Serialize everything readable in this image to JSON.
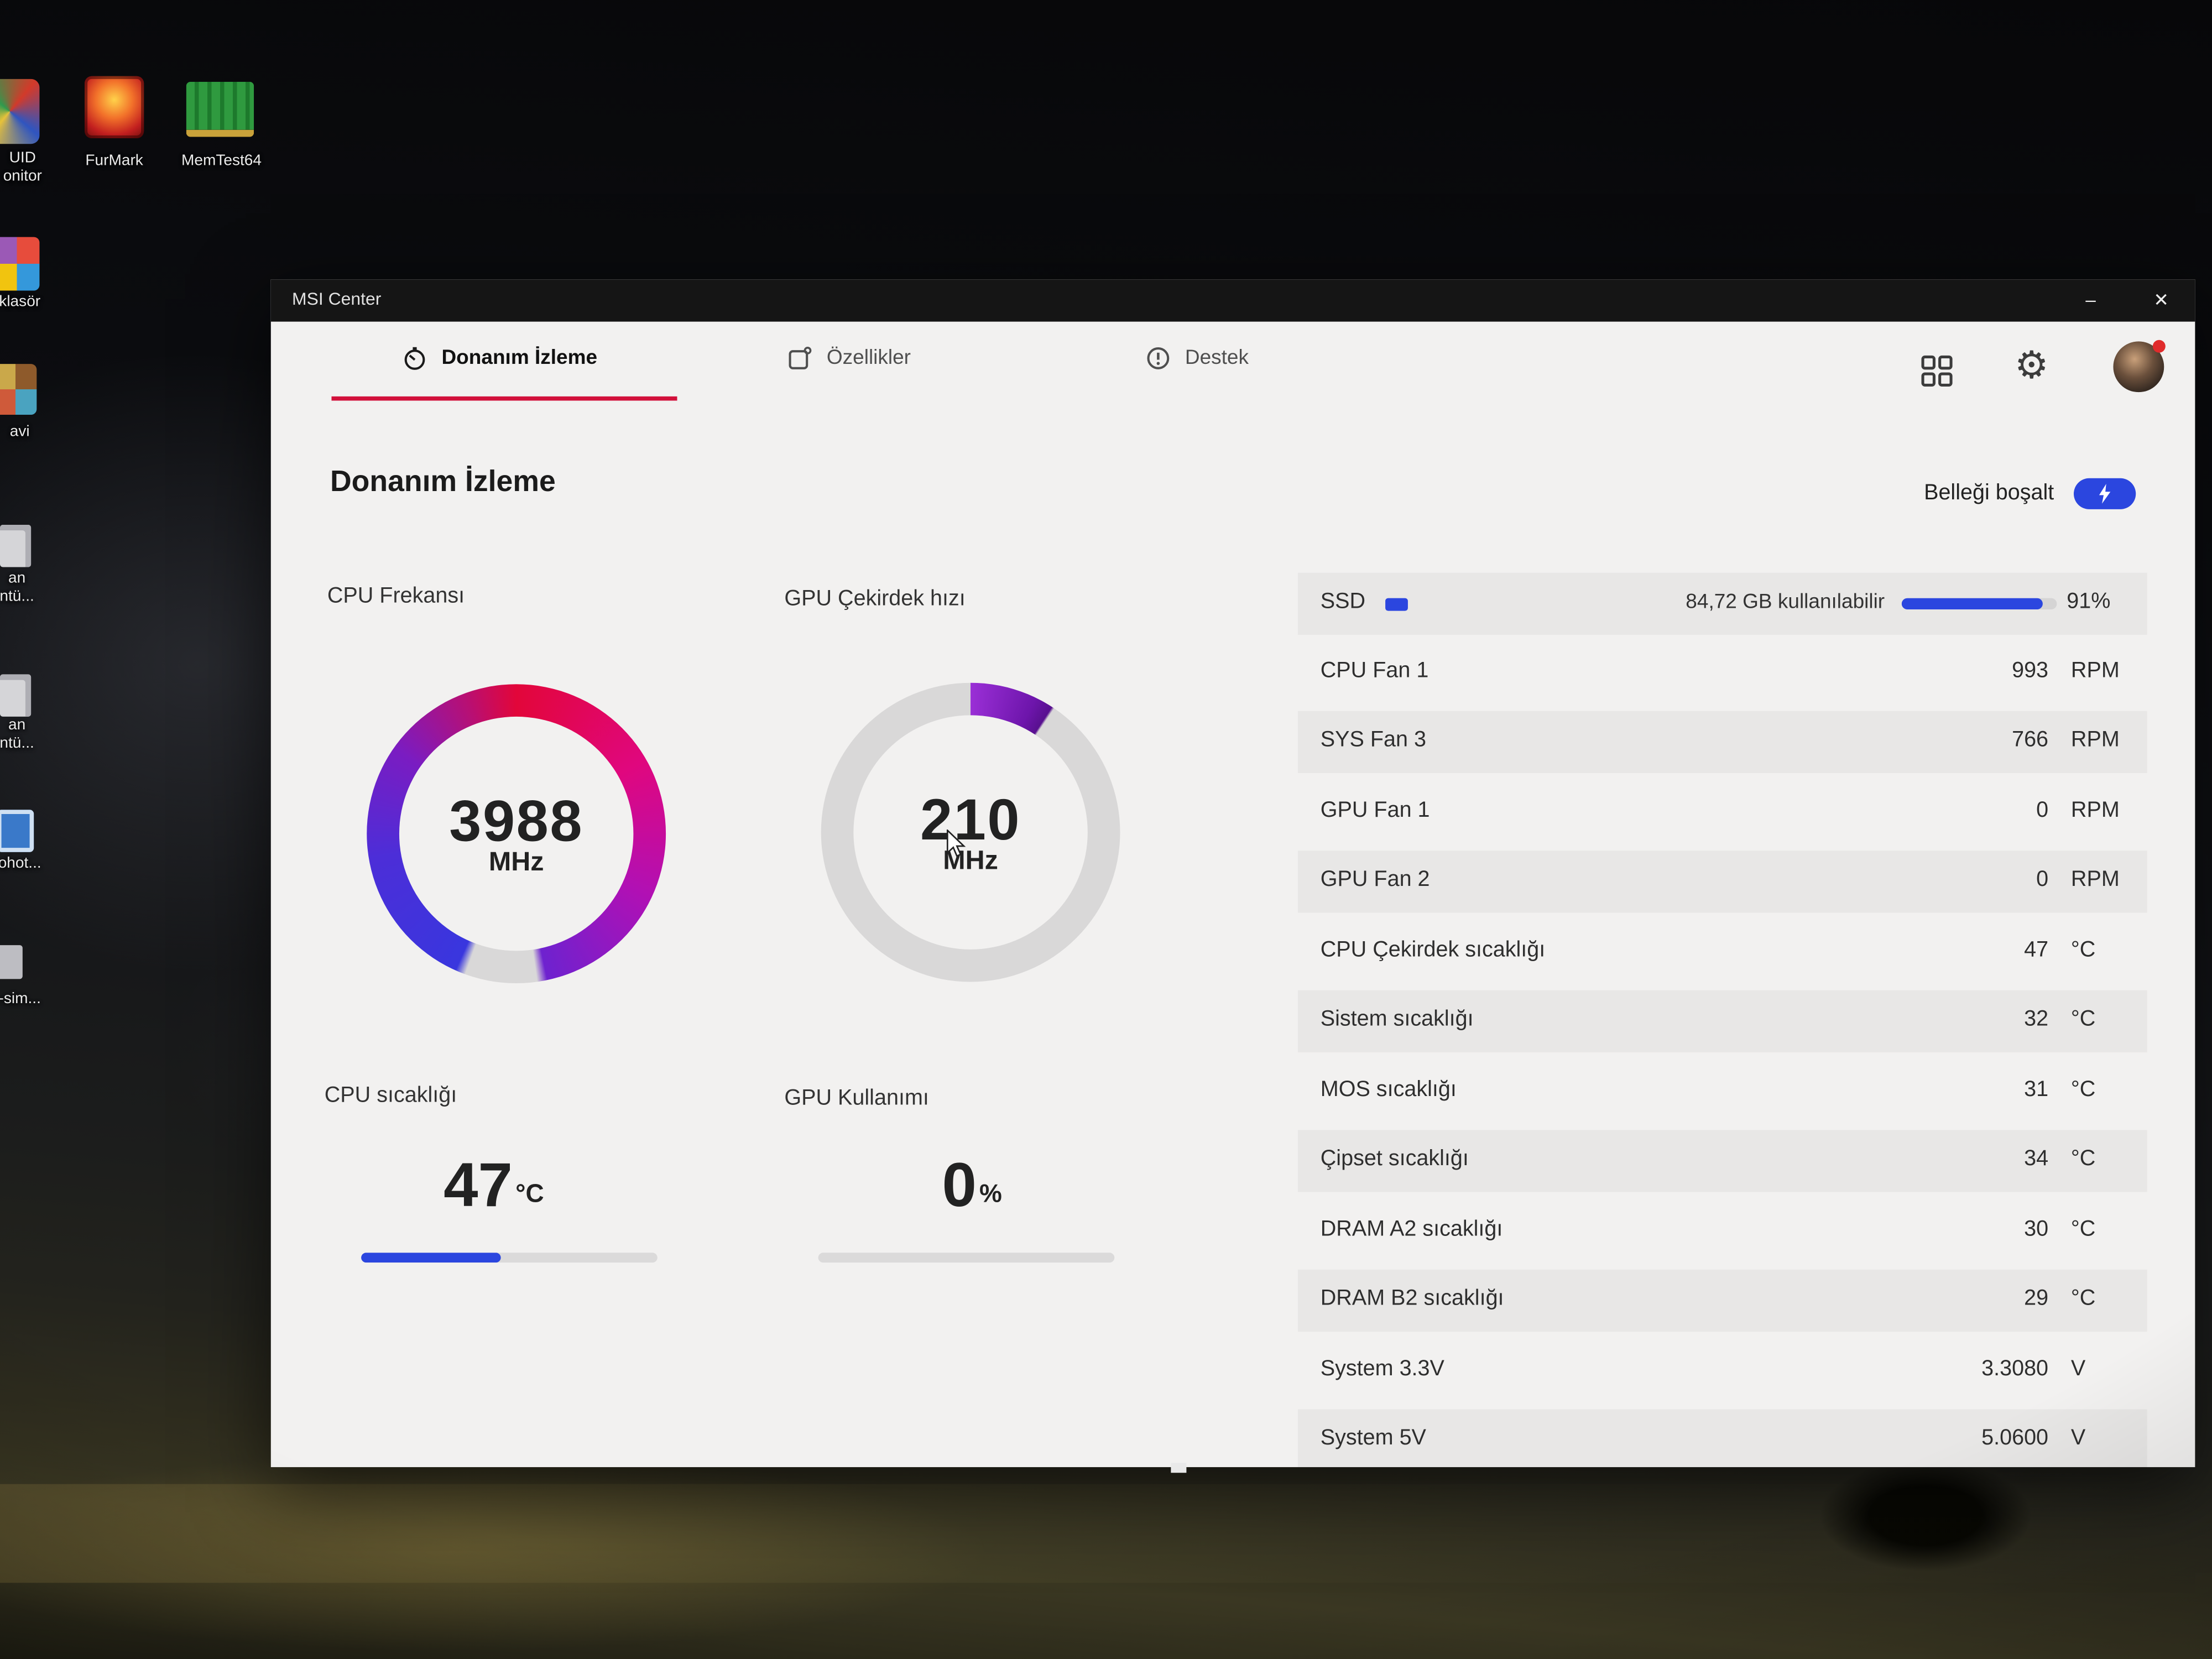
{
  "colors": {
    "accent_red": "#d2103a",
    "accent_blue": "#2b46df",
    "gauge_purple": "#7d1ec8",
    "window_bg": "#f2f1f0",
    "titlebar_bg": "#151515",
    "row_gray": "#e8e7e6"
  },
  "desktop": {
    "icons": [
      {
        "id": "cpuid-monitor",
        "line1": "UID",
        "line2": "onitor"
      },
      {
        "id": "furmark",
        "line1": "FurMark",
        "line2": ""
      },
      {
        "id": "memtest64",
        "line1": "MemTest64",
        "line2": ""
      },
      {
        "id": "folder-klasor",
        "line1": "klasör",
        "line2": ""
      },
      {
        "id": "folder-avi",
        "line1": "avi",
        "line2": ""
      },
      {
        "id": "file-1",
        "line1": "an",
        "line2": "ntü..."
      },
      {
        "id": "file-2",
        "line1": "an",
        "line2": "ntü..."
      },
      {
        "id": "photo",
        "line1": "ohot...",
        "line2": ""
      },
      {
        "id": "sim",
        "line1": "-sim...",
        "line2": ""
      }
    ]
  },
  "window": {
    "title": "MSI Center",
    "controls": {
      "minimize": "–",
      "close": "✕"
    },
    "tabs": [
      {
        "label": "Donanım İzleme"
      },
      {
        "label": "Özellikler"
      },
      {
        "label": "Destek"
      }
    ],
    "page_title": "Donanım İzleme",
    "memory_button": {
      "label": "Belleği boşalt"
    },
    "gauges": {
      "cpu_freq": {
        "label": "CPU Frekansı",
        "value": "3988",
        "unit": "MHz",
        "percent": 88
      },
      "gpu_clock": {
        "label": "GPU Çekirdek hızı",
        "value": "210",
        "unit": "MHz",
        "percent": 9
      }
    },
    "meters": {
      "cpu_temp": {
        "label": "CPU sıcaklığı",
        "value": "47",
        "unit": "°C",
        "percent": 47
      },
      "gpu_usage": {
        "label": "GPU Kullanımı",
        "value": "0",
        "unit": "%",
        "percent": 0
      }
    },
    "ssd": {
      "label": "SSD",
      "detail": "84,72 GB kullanılabilir",
      "percent": 91,
      "percent_label": "91%"
    },
    "sensors": [
      {
        "label": "CPU Fan 1",
        "value": "993",
        "unit": "RPM"
      },
      {
        "label": "SYS Fan 3",
        "value": "766",
        "unit": "RPM"
      },
      {
        "label": "GPU Fan 1",
        "value": "0",
        "unit": "RPM"
      },
      {
        "label": "GPU Fan 2",
        "value": "0",
        "unit": "RPM"
      },
      {
        "label": "CPU Çekirdek sıcaklığı",
        "value": "47",
        "unit": "°C"
      },
      {
        "label": "Sistem sıcaklığı",
        "value": "32",
        "unit": "°C"
      },
      {
        "label": "MOS sıcaklığı",
        "value": "31",
        "unit": "°C"
      },
      {
        "label": "Çipset sıcaklığı",
        "value": "34",
        "unit": "°C"
      },
      {
        "label": "DRAM A2 sıcaklığı",
        "value": "30",
        "unit": "°C"
      },
      {
        "label": "DRAM B2 sıcaklığı",
        "value": "29",
        "unit": "°C"
      },
      {
        "label": "System 3.3V",
        "value": "3.3080",
        "unit": "V"
      },
      {
        "label": "System 5V",
        "value": "5.0600",
        "unit": "V"
      }
    ]
  }
}
